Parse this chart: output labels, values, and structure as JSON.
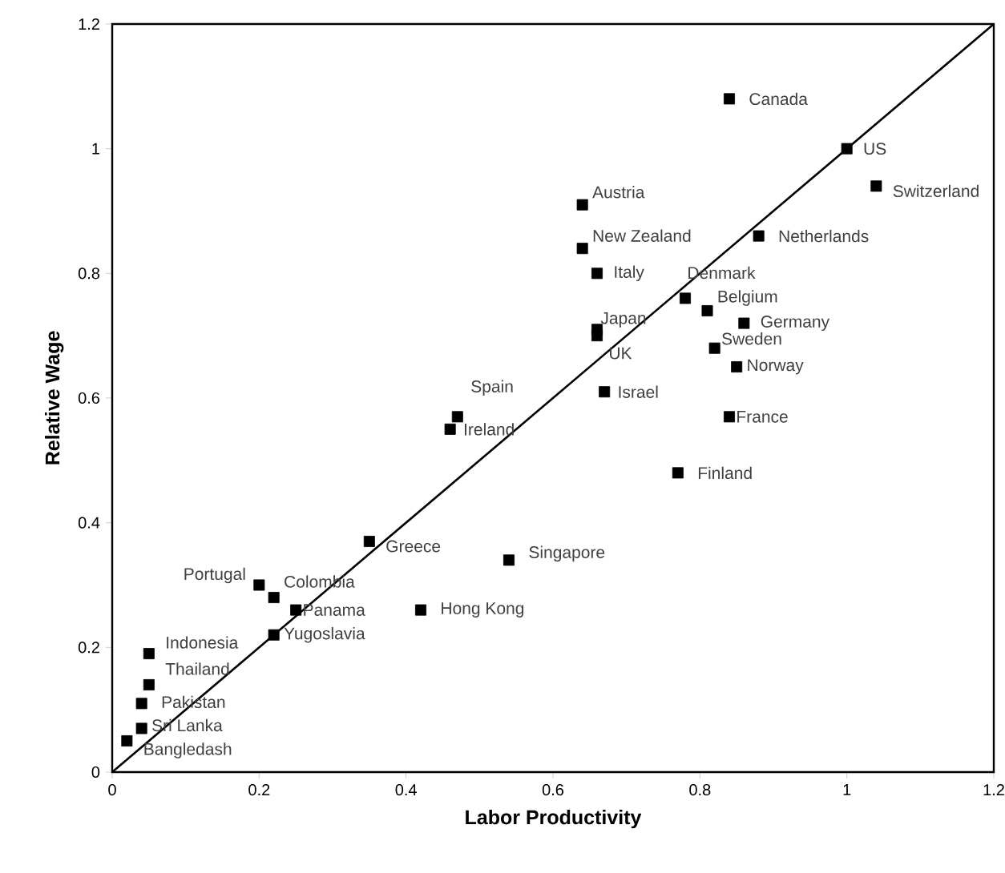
{
  "chart_data": {
    "type": "scatter",
    "xlabel": "Labor Productivity",
    "ylabel": "Relative Wage",
    "xlim": [
      0,
      1.2
    ],
    "ylim": [
      0,
      1.2
    ],
    "xticks": [
      0,
      0.2,
      0.4,
      0.6,
      0.8,
      1,
      1.2
    ],
    "yticks": [
      0,
      0.2,
      0.4,
      0.6,
      0.8,
      1,
      1.2
    ],
    "grid": false,
    "series": [
      {
        "marker": "square",
        "color": "#000000",
        "x": [
          0.84,
          1.0,
          1.04,
          0.64,
          0.64,
          0.88,
          0.66,
          0.78,
          0.81,
          0.86,
          0.66,
          0.66,
          0.82,
          0.85,
          0.67,
          0.47,
          0.46,
          0.84,
          0.77,
          0.35,
          0.54,
          0.2,
          0.22,
          0.25,
          0.42,
          0.22,
          0.05,
          0.05,
          0.04,
          0.04,
          0.02
        ],
        "values": [
          1.08,
          1.0,
          0.94,
          0.91,
          0.84,
          0.86,
          0.8,
          0.76,
          0.74,
          0.72,
          0.71,
          0.7,
          0.68,
          0.65,
          0.61,
          0.57,
          0.55,
          0.57,
          0.48,
          0.37,
          0.34,
          0.3,
          0.28,
          0.26,
          0.26,
          0.22,
          0.19,
          0.14,
          0.11,
          0.07,
          0.05
        ]
      },
      {
        "type": "line",
        "marker": "none",
        "color": "#000000",
        "x": [
          0,
          1.2
        ],
        "values": [
          0,
          1.2
        ]
      }
    ],
    "annotations": [
      {
        "text": "Canada",
        "x": 0.84,
        "y": 1.08
      },
      {
        "text": "US",
        "x": 1.0,
        "y": 1.0
      },
      {
        "text": "Switzerland",
        "x": 1.04,
        "y": 0.94
      },
      {
        "text": "Austria",
        "x": 0.64,
        "y": 0.91
      },
      {
        "text": "New Zealand",
        "x": 0.64,
        "y": 0.84
      },
      {
        "text": "Netherlands",
        "x": 0.88,
        "y": 0.86
      },
      {
        "text": "Italy",
        "x": 0.66,
        "y": 0.8
      },
      {
        "text": "Denmark",
        "x": 0.78,
        "y": 0.76
      },
      {
        "text": "Belgium",
        "x": 0.81,
        "y": 0.74
      },
      {
        "text": "Germany",
        "x": 0.86,
        "y": 0.72
      },
      {
        "text": "Japan",
        "x": 0.66,
        "y": 0.71
      },
      {
        "text": "UK",
        "x": 0.66,
        "y": 0.7
      },
      {
        "text": "Sweden",
        "x": 0.82,
        "y": 0.68
      },
      {
        "text": "Norway",
        "x": 0.85,
        "y": 0.65
      },
      {
        "text": "Israel",
        "x": 0.67,
        "y": 0.61
      },
      {
        "text": "Spain",
        "x": 0.47,
        "y": 0.57
      },
      {
        "text": "Ireland",
        "x": 0.46,
        "y": 0.55
      },
      {
        "text": "France",
        "x": 0.84,
        "y": 0.57
      },
      {
        "text": "Finland",
        "x": 0.77,
        "y": 0.48
      },
      {
        "text": "Greece",
        "x": 0.35,
        "y": 0.37
      },
      {
        "text": "Singapore",
        "x": 0.54,
        "y": 0.34
      },
      {
        "text": "Portugal",
        "x": 0.2,
        "y": 0.3
      },
      {
        "text": "Colombia",
        "x": 0.22,
        "y": 0.28
      },
      {
        "text": "Panama",
        "x": 0.25,
        "y": 0.26
      },
      {
        "text": "Hong Kong",
        "x": 0.42,
        "y": 0.26
      },
      {
        "text": "Yugoslavia",
        "x": 0.22,
        "y": 0.22
      },
      {
        "text": "Indonesia",
        "x": 0.05,
        "y": 0.19
      },
      {
        "text": "Thailand",
        "x": 0.05,
        "y": 0.14
      },
      {
        "text": "Pakistan",
        "x": 0.04,
        "y": 0.11
      },
      {
        "text": "Sri Lanka",
        "x": 0.04,
        "y": 0.07
      },
      {
        "text": "Bangledash",
        "x": 0.02,
        "y": 0.05
      }
    ]
  }
}
